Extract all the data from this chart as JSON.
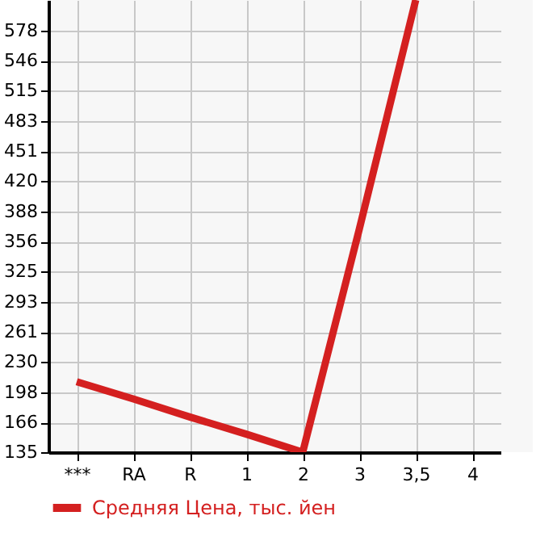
{
  "chart_data": {
    "type": "line",
    "categories": [
      "***",
      "RA",
      "R",
      "1",
      "2",
      "3",
      "3,5",
      "4"
    ],
    "series": [
      {
        "name": "Средняя Цена, тыс. йен",
        "color": "#d42020",
        "values": [
          209,
          191,
          172,
          154,
          135,
          369,
          610,
          null
        ]
      }
    ],
    "ylim": [
      135,
      610
    ],
    "yticks": [
      135,
      166,
      198,
      230,
      261,
      293,
      325,
      356,
      388,
      420,
      451,
      483,
      515,
      546,
      578
    ],
    "grid": true,
    "legend": "bottom",
    "marker": "none",
    "line_style": "solid"
  }
}
